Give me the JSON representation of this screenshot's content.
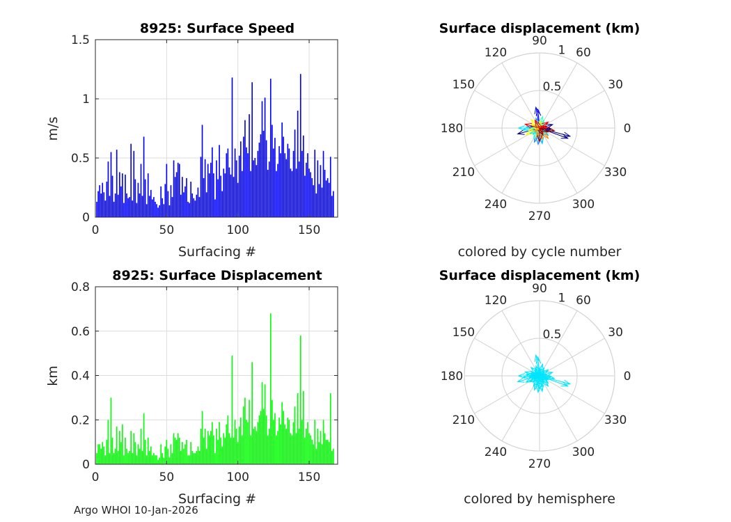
{
  "chart_data": [
    {
      "type": "bar",
      "title": "8925: Surface Speed",
      "xlabel": "Surfacing #",
      "ylabel": "m/s",
      "xlim": [
        0,
        170
      ],
      "ylim": [
        0,
        1.5
      ],
      "xticks": [
        0,
        50,
        100,
        150
      ],
      "yticks": [
        0,
        0.5,
        1,
        1.5
      ],
      "ytick_labels": [
        "0",
        "0.5",
        "1",
        "1.5"
      ],
      "color": "#0000ff",
      "values": [
        0.13,
        0.22,
        0.27,
        0.2,
        0.29,
        0.21,
        0.14,
        0.3,
        0.47,
        0.18,
        0.55,
        0.35,
        0.13,
        0.2,
        0.57,
        0.19,
        0.38,
        0.26,
        0.37,
        0.12,
        0.36,
        0.2,
        0.16,
        0.17,
        0.62,
        0.14,
        0.56,
        0.32,
        0.12,
        0.29,
        0.2,
        0.45,
        0.18,
        0.68,
        0.32,
        0.11,
        0.37,
        0.18,
        0.23,
        0.15,
        0.17,
        0.13,
        0.11,
        0.08,
        0.1,
        0.26,
        0.16,
        0.11,
        0.28,
        0.45,
        0.22,
        0.1,
        0.27,
        0.17,
        0.48,
        0.34,
        0.38,
        0.46,
        0.45,
        0.19,
        0.34,
        0.21,
        0.26,
        0.33,
        0.13,
        0.12,
        0.3,
        0.2,
        0.16,
        0.14,
        0.19,
        0.25,
        0.17,
        0.51,
        0.78,
        0.33,
        0.49,
        0.21,
        0.45,
        0.37,
        0.46,
        0.59,
        0.37,
        0.15,
        0.48,
        0.32,
        0.61,
        0.35,
        0.22,
        0.41,
        0.37,
        0.54,
        0.58,
        0.42,
        0.36,
        1.18,
        0.34,
        0.58,
        0.48,
        0.29,
        0.52,
        0.64,
        0.39,
        0.68,
        0.82,
        0.59,
        0.54,
        0.87,
        0.39,
        1.14,
        0.48,
        0.5,
        0.44,
        0.56,
        0.63,
        0.7,
        0.98,
        0.73,
        1.01,
        0.65,
        0.4,
        0.47,
        1.17,
        0.78,
        0.58,
        0.67,
        0.39,
        0.45,
        0.6,
        0.54,
        0.8,
        0.68,
        0.54,
        0.49,
        0.62,
        0.58,
        0.41,
        0.39,
        0.56,
        0.74,
        0.41,
        0.9,
        0.47,
        1.21,
        0.56,
        0.69,
        0.35,
        0.46,
        0.54,
        0.41,
        0.38,
        0.33,
        0.27,
        0.57,
        0.2,
        0.48,
        0.28,
        0.44,
        0.25,
        0.56,
        0.4,
        0.31,
        0.33,
        0.29,
        0.51,
        0.18,
        0.22
      ]
    },
    {
      "type": "bar",
      "title": "8925: Surface Displacement",
      "xlabel": "Surfacing #",
      "ylabel": "km",
      "xlim": [
        0,
        170
      ],
      "ylim": [
        0,
        0.8
      ],
      "xticks": [
        0,
        50,
        100,
        150
      ],
      "yticks": [
        0,
        0.2,
        0.4,
        0.6,
        0.8
      ],
      "ytick_labels": [
        "0",
        "0.2",
        "0.4",
        "0.6",
        "0.8"
      ],
      "color": "#00ff00",
      "values": [
        0.05,
        0.09,
        0.09,
        0.07,
        0.1,
        0.08,
        0.04,
        0.11,
        0.2,
        0.05,
        0.3,
        0.12,
        0.05,
        0.07,
        0.17,
        0.06,
        0.15,
        0.1,
        0.18,
        0.04,
        0.12,
        0.07,
        0.05,
        0.06,
        0.15,
        0.05,
        0.14,
        0.1,
        0.04,
        0.09,
        0.07,
        0.16,
        0.06,
        0.23,
        0.11,
        0.04,
        0.12,
        0.06,
        0.08,
        0.04,
        0.05,
        0.04,
        0.04,
        0.02,
        0.03,
        0.09,
        0.05,
        0.03,
        0.08,
        0.11,
        0.07,
        0.03,
        0.09,
        0.05,
        0.14,
        0.12,
        0.11,
        0.14,
        0.12,
        0.06,
        0.1,
        0.07,
        0.09,
        0.11,
        0.04,
        0.04,
        0.1,
        0.06,
        0.05,
        0.05,
        0.06,
        0.08,
        0.06,
        0.16,
        0.24,
        0.12,
        0.16,
        0.07,
        0.15,
        0.13,
        0.15,
        0.19,
        0.13,
        0.05,
        0.16,
        0.11,
        0.19,
        0.12,
        0.08,
        0.14,
        0.12,
        0.18,
        0.22,
        0.14,
        0.12,
        0.49,
        0.12,
        0.2,
        0.16,
        0.1,
        0.17,
        0.21,
        0.13,
        0.26,
        0.3,
        0.2,
        0.19,
        0.29,
        0.13,
        0.46,
        0.16,
        0.17,
        0.15,
        0.19,
        0.22,
        0.24,
        0.37,
        0.25,
        0.36,
        0.22,
        0.13,
        0.16,
        0.68,
        0.29,
        0.2,
        0.23,
        0.13,
        0.15,
        0.21,
        0.18,
        0.28,
        0.24,
        0.18,
        0.16,
        0.21,
        0.2,
        0.14,
        0.13,
        0.19,
        0.26,
        0.14,
        0.32,
        0.16,
        0.58,
        0.2,
        0.33,
        0.12,
        0.16,
        0.19,
        0.14,
        0.13,
        0.11,
        0.09,
        0.2,
        0.07,
        0.16,
        0.1,
        0.15,
        0.09,
        0.2,
        0.14,
        0.11,
        0.11,
        0.1,
        0.32,
        0.06,
        0.07
      ]
    },
    {
      "type": "polar",
      "title": "Surface displacement (km)",
      "caption": "colored by cycle number",
      "rmax": 1,
      "rticks": [
        0.5,
        1
      ],
      "rtick_labels": [
        "0.5",
        "1"
      ],
      "angle_labels": [
        "0",
        "30",
        "60",
        "90",
        "120",
        "150",
        "180",
        "210",
        "240",
        "270",
        "300",
        "330"
      ],
      "palette": [
        "#00008b",
        "#0000ff",
        "#1e90ff",
        "#00bfff",
        "#00e5ff",
        "#40ffbf",
        "#ffff00",
        "#ff8c00",
        "#ff0000",
        "#8b0000"
      ],
      "vectors_note": "one arrow per surfacing; [angle_deg, length_km] as shown in the plot",
      "vectors": [
        [
          195,
          0.3
        ],
        [
          345,
          0.42
        ],
        [
          340,
          0.4
        ],
        [
          355,
          0.15
        ],
        [
          15,
          0.18
        ],
        [
          170,
          0.12
        ],
        [
          200,
          0.1
        ],
        [
          100,
          0.28
        ],
        [
          95,
          0.25
        ],
        [
          110,
          0.14
        ],
        [
          130,
          0.09
        ],
        [
          150,
          0.08
        ],
        [
          250,
          0.2
        ],
        [
          265,
          0.22
        ],
        [
          280,
          0.21
        ],
        [
          300,
          0.12
        ],
        [
          320,
          0.15
        ],
        [
          330,
          0.1
        ],
        [
          180,
          0.28
        ],
        [
          185,
          0.22
        ],
        [
          175,
          0.18
        ],
        [
          210,
          0.15
        ],
        [
          225,
          0.12
        ],
        [
          240,
          0.16
        ],
        [
          60,
          0.12
        ],
        [
          45,
          0.09
        ],
        [
          75,
          0.16
        ],
        [
          85,
          0.1
        ],
        [
          135,
          0.16
        ],
        [
          155,
          0.12
        ],
        [
          190,
          0.14
        ],
        [
          205,
          0.2
        ],
        [
          215,
          0.08
        ],
        [
          255,
          0.13
        ],
        [
          285,
          0.15
        ],
        [
          310,
          0.18
        ],
        [
          5,
          0.1
        ],
        [
          25,
          0.07
        ],
        [
          35,
          0.14
        ],
        [
          120,
          0.12
        ],
        [
          165,
          0.2
        ],
        [
          350,
          0.2
        ],
        [
          335,
          0.12
        ],
        [
          270,
          0.18
        ],
        [
          295,
          0.1
        ]
      ]
    },
    {
      "type": "polar",
      "title": "Surface displacement (km)",
      "caption": "colored by hemisphere",
      "rmax": 1,
      "rticks": [
        0.5,
        1
      ],
      "rtick_labels": [
        "0.5",
        "1"
      ],
      "angle_labels": [
        "0",
        "30",
        "60",
        "90",
        "120",
        "150",
        "180",
        "210",
        "240",
        "270",
        "300",
        "330"
      ],
      "color": "#00e5ff",
      "vectors": [
        [
          195,
          0.3
        ],
        [
          345,
          0.42
        ],
        [
          340,
          0.4
        ],
        [
          355,
          0.15
        ],
        [
          15,
          0.18
        ],
        [
          170,
          0.12
        ],
        [
          200,
          0.1
        ],
        [
          100,
          0.28
        ],
        [
          95,
          0.25
        ],
        [
          110,
          0.14
        ],
        [
          130,
          0.09
        ],
        [
          150,
          0.08
        ],
        [
          250,
          0.2
        ],
        [
          265,
          0.22
        ],
        [
          280,
          0.21
        ],
        [
          300,
          0.12
        ],
        [
          320,
          0.15
        ],
        [
          330,
          0.1
        ],
        [
          180,
          0.28
        ],
        [
          185,
          0.22
        ],
        [
          175,
          0.18
        ],
        [
          210,
          0.15
        ],
        [
          225,
          0.12
        ],
        [
          240,
          0.16
        ],
        [
          60,
          0.12
        ],
        [
          45,
          0.09
        ],
        [
          75,
          0.16
        ],
        [
          85,
          0.1
        ],
        [
          135,
          0.16
        ],
        [
          155,
          0.12
        ],
        [
          190,
          0.14
        ],
        [
          205,
          0.2
        ],
        [
          215,
          0.08
        ],
        [
          255,
          0.13
        ],
        [
          285,
          0.15
        ],
        [
          310,
          0.18
        ],
        [
          5,
          0.1
        ],
        [
          25,
          0.07
        ],
        [
          35,
          0.14
        ],
        [
          120,
          0.12
        ],
        [
          165,
          0.2
        ],
        [
          350,
          0.2
        ],
        [
          335,
          0.12
        ],
        [
          270,
          0.18
        ],
        [
          295,
          0.1
        ]
      ]
    }
  ],
  "footer": {
    "text": "Argo WHOI 10-Jan-2026"
  }
}
